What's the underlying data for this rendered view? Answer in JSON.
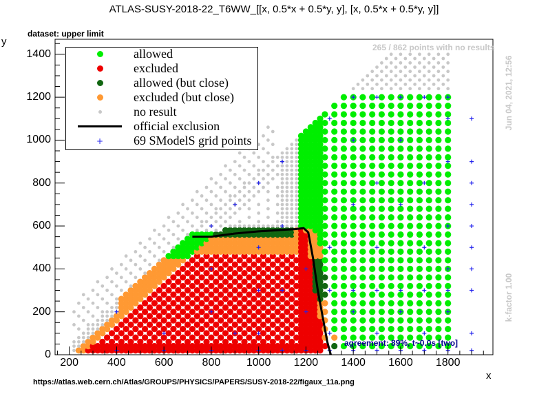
{
  "title": "ATLAS-SUSY-2018-22_T6WW_[[x, 0.5*x + 0.5*y, y], [x, 0.5*x + 0.5*y, y]]",
  "dataset_label": "dataset: upper limit",
  "no_result_note": "265 / 862 points with no results",
  "date_note": "Jun 04, 2021, 12:56",
  "kfactor_note": "k-factor 1.00",
  "agreement_note": "agreement: 89%, t~0.0s [two]",
  "source_url": "https://atlas.web.cern.ch/Atlas/GROUPS/PHYSICS/PAPERS/SUSY-2018-22/figaux_11a.png",
  "colors": {
    "allowed": "#00ee00",
    "excluded": "#ee0000",
    "allowed_close": "#116611",
    "excluded_close": "#ff9933",
    "no_result": "#c8c8c8",
    "official": "#000000",
    "grid_points": "#2222ee"
  },
  "chart_data": {
    "type": "scatter",
    "title": "ATLAS-SUSY-2018-22_T6WW_[[x, 0.5*x + 0.5*y, y], [x, 0.5*x + 0.5*y, y]]",
    "xlabel": "x",
    "ylabel": "y",
    "xlim": [
      140,
      1990
    ],
    "ylim": [
      0,
      1470
    ],
    "xticks": [
      200,
      400,
      600,
      800,
      1000,
      1200,
      1400,
      1600,
      1800
    ],
    "yticks": [
      0,
      200,
      400,
      600,
      800,
      1000,
      1200,
      1400
    ],
    "grid": false,
    "legend_position": "top-left",
    "legend": [
      "allowed",
      "excluded",
      "allowed (but close)",
      "excluded (but close)",
      "no result",
      "official exclusion",
      "69 SModelS grid points"
    ],
    "region_model": {
      "x_range": [
        200,
        1800
      ],
      "y_max_along_diagonal": "y < x - 100",
      "y_cap": 1400,
      "official_exclusion": {
        "x": [
          720,
          800,
          900,
          1000,
          1100,
          1150,
          1190,
          1210,
          1230,
          1250,
          1270,
          1290,
          1305
        ],
        "y": [
          550,
          550,
          565,
          575,
          582,
          585,
          590,
          570,
          450,
          300,
          180,
          60,
          0
        ]
      }
    },
    "grid_points": {
      "x": [
        400,
        400,
        600,
        600,
        800,
        800,
        800,
        900,
        1000,
        1000,
        1000,
        1100,
        1100,
        1200,
        1200,
        1300,
        1300,
        1300,
        1300,
        1400,
        1400,
        1400,
        1400,
        1400,
        1500,
        1500,
        1500,
        1500,
        1500,
        1600,
        1600,
        1600,
        1600,
        1600,
        1700,
        1700,
        1700,
        1700,
        1700,
        1800,
        1800,
        1800,
        1800,
        1800,
        1800,
        1800,
        1900,
        1900,
        1900,
        1900,
        1900,
        1900,
        1900,
        800,
        900,
        1000,
        1000,
        1100,
        1100,
        1200,
        1300,
        1400,
        1500,
        1600,
        1700,
        1800,
        1900,
        1900,
        1900
      ],
      "y": [
        20,
        200,
        20,
        100,
        20,
        200,
        600,
        700,
        20,
        100,
        800,
        20,
        900,
        20,
        200,
        20,
        100,
        500,
        1100,
        20,
        200,
        700,
        1000,
        1200,
        20,
        100,
        500,
        800,
        1200,
        20,
        200,
        700,
        1000,
        1200,
        20,
        100,
        500,
        800,
        1200,
        20,
        200,
        300,
        600,
        900,
        1100,
        1200,
        20,
        100,
        300,
        500,
        700,
        900,
        1100,
        400,
        100,
        500,
        300,
        300,
        600,
        400,
        300,
        300,
        300,
        300,
        300,
        400,
        400,
        600,
        800
      ]
    }
  },
  "legend": {
    "allowed": "allowed",
    "excluded": "excluded",
    "allowed_close": "allowed (but close)",
    "excluded_close": "excluded (but close)",
    "no_result": "no result",
    "official": "official exclusion",
    "grid": "69 SModelS grid points"
  }
}
